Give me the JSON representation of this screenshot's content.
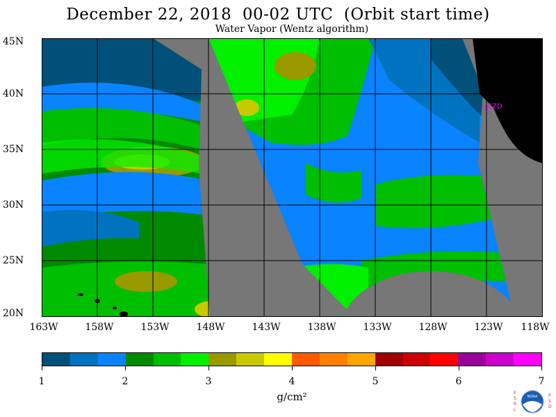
{
  "title": "December 22, 2018  00-02 UTC  (Orbit start time)",
  "subtitle": "Water Vapor (Wentz algorithm)",
  "map": {
    "lat_labels": [
      "45N",
      "40N",
      "35N",
      "30N",
      "25N",
      "20N"
    ],
    "lon_labels": [
      "163W",
      "158W",
      "153W",
      "148W",
      "143W",
      "138W",
      "133W",
      "128W",
      "123W",
      "118W"
    ],
    "station_label": "CZD",
    "colors": {
      "no_data": "#777777",
      "land": "#000000",
      "station": "#ff00ff"
    }
  },
  "colorbar": {
    "colors": [
      "#00507a",
      "#0073c0",
      "#0a83ff",
      "#008a00",
      "#00be00",
      "#00f000",
      "#999900",
      "#c9c900",
      "#ffff00",
      "#ff5a00",
      "#ff8000",
      "#ffa500",
      "#a00000",
      "#cc0000",
      "#ff0000",
      "#990099",
      "#cc00cc",
      "#ff00ff"
    ],
    "ticks": [
      "1",
      "2",
      "3",
      "4",
      "5",
      "6",
      "7"
    ],
    "unit": "g/cm²"
  },
  "logo": {
    "left_text": "ESRL",
    "right_text": "PSD",
    "center_text": "NOAA"
  }
}
